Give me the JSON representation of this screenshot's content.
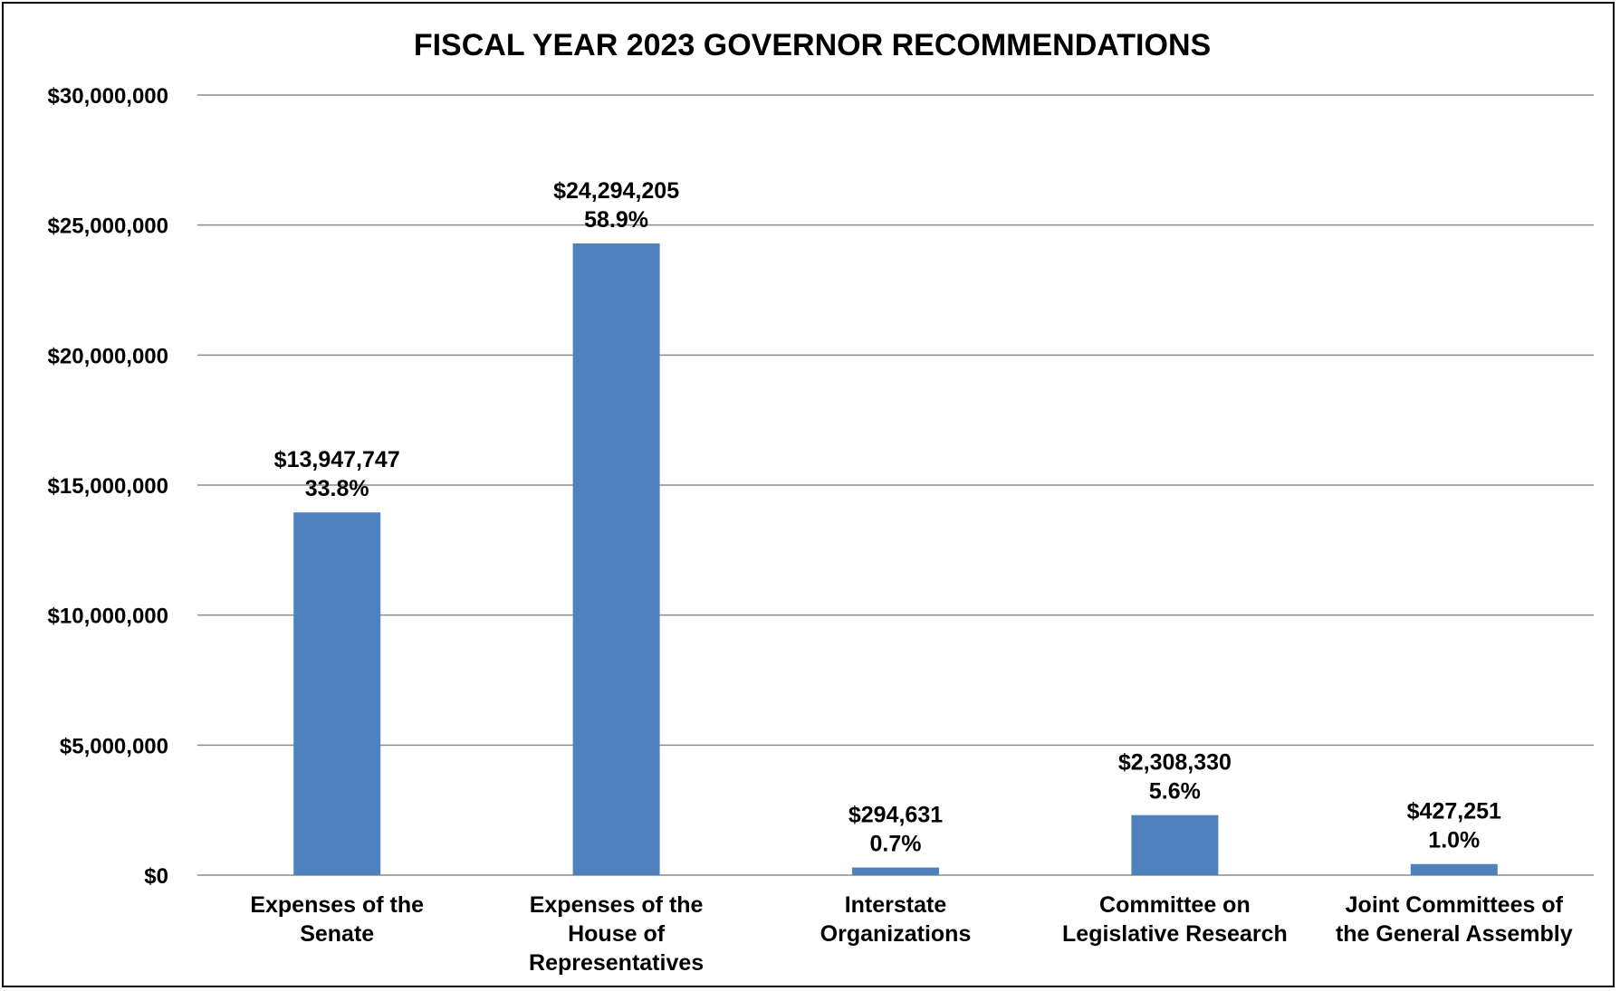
{
  "chart_data": {
    "type": "bar",
    "title": "FISCAL YEAR 2023 GOVERNOR RECOMMENDATIONS",
    "categories": [
      [
        "Expenses of the",
        "Senate"
      ],
      [
        "Expenses of the",
        "House of",
        "Representatives"
      ],
      [
        "Interstate",
        "Organizations"
      ],
      [
        "Committee on",
        "Legislative Research"
      ],
      [
        "Joint Committees of",
        "the General Assembly"
      ]
    ],
    "values": [
      13947747,
      24294205,
      294631,
      2308330,
      427251
    ],
    "value_labels": [
      "$13,947,747",
      "$24,294,205",
      "$294,631",
      "$2,308,330",
      "$427,251"
    ],
    "percent_labels": [
      "33.8%",
      "58.9%",
      "0.7%",
      "5.6%",
      "1.0%"
    ],
    "ylim": [
      0,
      30000000
    ],
    "yticks": [
      0,
      5000000,
      10000000,
      15000000,
      20000000,
      25000000,
      30000000
    ],
    "ytick_labels": [
      "$0",
      "$5,000,000",
      "$10,000,000",
      "$15,000,000",
      "$20,000,000",
      "$25,000,000",
      "$30,000,000"
    ],
    "grid": true,
    "bar_color": "#4F81BD",
    "grid_color": "#8C8C8C",
    "xlabel": "",
    "ylabel": ""
  }
}
